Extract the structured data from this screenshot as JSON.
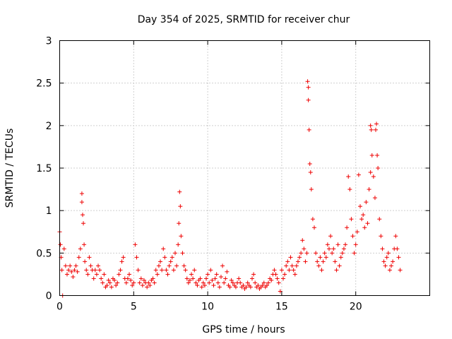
{
  "chart_data": {
    "type": "scatter",
    "title": "Day 354 of 2025, SRMTID for receiver chur",
    "xlabel": "GPS time / hours",
    "ylabel": "SRMTID / TECUs",
    "xlim": [
      0,
      25
    ],
    "ylim": [
      0,
      3
    ],
    "x_ticks": [
      "0",
      "5",
      "10",
      "15",
      "20"
    ],
    "y_ticks": [
      "0",
      "0.5",
      "1",
      "1.5",
      "2",
      "2.5",
      "3"
    ],
    "grid": true,
    "marker": "+",
    "color": "#ee0000",
    "series": [
      {
        "name": "SRMTID",
        "x": [
          0.0,
          0.05,
          0.1,
          0.15,
          0.2,
          0.3,
          0.4,
          0.5,
          0.6,
          0.7,
          0.8,
          0.9,
          1.0,
          1.1,
          1.2,
          1.3,
          1.4,
          1.5,
          1.5,
          1.55,
          1.6,
          1.65,
          1.7,
          1.8,
          1.9,
          2.0,
          2.1,
          2.2,
          2.3,
          2.4,
          2.5,
          2.6,
          2.7,
          2.8,
          2.9,
          3.0,
          3.1,
          3.2,
          3.3,
          3.4,
          3.5,
          3.6,
          3.7,
          3.8,
          3.9,
          4.0,
          4.1,
          4.2,
          4.3,
          4.4,
          4.5,
          4.6,
          4.7,
          4.8,
          4.9,
          5.0,
          5.1,
          5.2,
          5.3,
          5.4,
          5.5,
          5.6,
          5.7,
          5.8,
          5.9,
          6.0,
          6.1,
          6.2,
          6.3,
          6.4,
          6.5,
          6.6,
          6.7,
          6.8,
          6.9,
          7.0,
          7.1,
          7.2,
          7.3,
          7.4,
          7.5,
          7.6,
          7.7,
          7.8,
          7.9,
          8.0,
          8.05,
          8.1,
          8.15,
          8.2,
          8.3,
          8.4,
          8.5,
          8.6,
          8.7,
          8.8,
          8.9,
          9.0,
          9.1,
          9.2,
          9.3,
          9.4,
          9.5,
          9.6,
          9.7,
          9.8,
          9.9,
          10.0,
          10.1,
          10.2,
          10.3,
          10.4,
          10.5,
          10.6,
          10.7,
          10.8,
          10.9,
          11.0,
          11.1,
          11.2,
          11.3,
          11.4,
          11.5,
          11.6,
          11.7,
          11.8,
          11.9,
          12.0,
          12.1,
          12.2,
          12.3,
          12.4,
          12.5,
          12.6,
          12.7,
          12.8,
          12.9,
          13.0,
          13.1,
          13.2,
          13.3,
          13.4,
          13.5,
          13.6,
          13.7,
          13.8,
          13.9,
          14.0,
          14.1,
          14.2,
          14.3,
          14.4,
          14.5,
          14.6,
          14.7,
          14.8,
          14.9,
          15.0,
          15.1,
          15.2,
          15.3,
          15.4,
          15.5,
          15.6,
          15.7,
          15.8,
          15.9,
          16.0,
          16.1,
          16.2,
          16.3,
          16.4,
          16.5,
          16.6,
          16.7,
          16.75,
          16.8,
          16.8,
          16.85,
          16.9,
          16.95,
          17.0,
          17.1,
          17.2,
          17.3,
          17.4,
          17.5,
          17.6,
          17.7,
          17.8,
          17.9,
          18.0,
          18.1,
          18.2,
          18.3,
          18.4,
          18.5,
          18.6,
          18.7,
          18.8,
          18.9,
          19.0,
          19.1,
          19.2,
          19.3,
          19.4,
          19.5,
          19.6,
          19.7,
          19.8,
          19.9,
          20.0,
          20.1,
          20.2,
          20.3,
          20.4,
          20.5,
          20.6,
          20.7,
          20.8,
          20.9,
          21.0,
          21.0,
          21.05,
          21.1,
          21.2,
          21.3,
          21.35,
          21.4,
          21.45,
          21.5,
          21.6,
          21.7,
          21.8,
          21.9,
          22.0,
          22.1,
          22.2,
          22.3,
          22.4,
          22.5,
          22.6,
          22.7,
          22.8,
          22.9,
          23.0
        ],
        "y": [
          0.75,
          0.6,
          0.45,
          0.3,
          0.0,
          0.55,
          0.35,
          0.25,
          0.3,
          0.35,
          0.28,
          0.22,
          0.3,
          0.35,
          0.28,
          0.45,
          0.55,
          1.2,
          1.1,
          0.95,
          0.85,
          0.6,
          0.4,
          0.3,
          0.25,
          0.45,
          0.35,
          0.3,
          0.2,
          0.3,
          0.25,
          0.35,
          0.3,
          0.2,
          0.15,
          0.25,
          0.1,
          0.12,
          0.18,
          0.15,
          0.1,
          0.2,
          0.18,
          0.12,
          0.15,
          0.25,
          0.3,
          0.4,
          0.45,
          0.2,
          0.15,
          0.2,
          0.25,
          0.18,
          0.12,
          0.15,
          0.6,
          0.45,
          0.3,
          0.15,
          0.2,
          0.12,
          0.18,
          0.15,
          0.1,
          0.15,
          0.12,
          0.18,
          0.2,
          0.15,
          0.3,
          0.25,
          0.35,
          0.4,
          0.3,
          0.55,
          0.45,
          0.3,
          0.25,
          0.35,
          0.4,
          0.45,
          0.3,
          0.5,
          0.35,
          0.6,
          0.85,
          1.22,
          1.05,
          0.7,
          0.5,
          0.35,
          0.3,
          0.2,
          0.15,
          0.18,
          0.25,
          0.2,
          0.3,
          0.15,
          0.12,
          0.18,
          0.2,
          0.1,
          0.15,
          0.12,
          0.2,
          0.25,
          0.15,
          0.3,
          0.18,
          0.12,
          0.2,
          0.25,
          0.15,
          0.1,
          0.22,
          0.35,
          0.15,
          0.2,
          0.28,
          0.12,
          0.1,
          0.18,
          0.15,
          0.12,
          0.1,
          0.15,
          0.2,
          0.15,
          0.1,
          0.12,
          0.08,
          0.1,
          0.15,
          0.12,
          0.1,
          0.2,
          0.25,
          0.15,
          0.1,
          0.12,
          0.08,
          0.1,
          0.12,
          0.15,
          0.1,
          0.12,
          0.15,
          0.2,
          0.18,
          0.25,
          0.3,
          0.25,
          0.2,
          0.15,
          0.05,
          0.3,
          0.2,
          0.25,
          0.35,
          0.4,
          0.3,
          0.45,
          0.35,
          0.3,
          0.25,
          0.35,
          0.4,
          0.45,
          0.5,
          0.65,
          0.55,
          0.4,
          0.5,
          2.52,
          2.45,
          2.3,
          1.95,
          1.55,
          1.45,
          1.25,
          0.9,
          0.8,
          0.5,
          0.4,
          0.35,
          0.45,
          0.3,
          0.4,
          0.5,
          0.45,
          0.6,
          0.55,
          0.7,
          0.5,
          0.55,
          0.4,
          0.3,
          0.6,
          0.35,
          0.45,
          0.5,
          0.55,
          0.6,
          0.8,
          1.4,
          1.25,
          0.9,
          0.7,
          0.5,
          0.6,
          0.75,
          1.42,
          1.05,
          0.9,
          0.95,
          0.8,
          1.1,
          0.85,
          1.25,
          1.45,
          2.0,
          1.95,
          1.65,
          1.4,
          1.15,
          1.95,
          2.02,
          1.65,
          1.5,
          0.9,
          0.7,
          0.55,
          0.4,
          0.35,
          0.45,
          0.5,
          0.3,
          0.35,
          0.4,
          0.55,
          0.7,
          0.55,
          0.45,
          0.3
        ]
      }
    ]
  }
}
